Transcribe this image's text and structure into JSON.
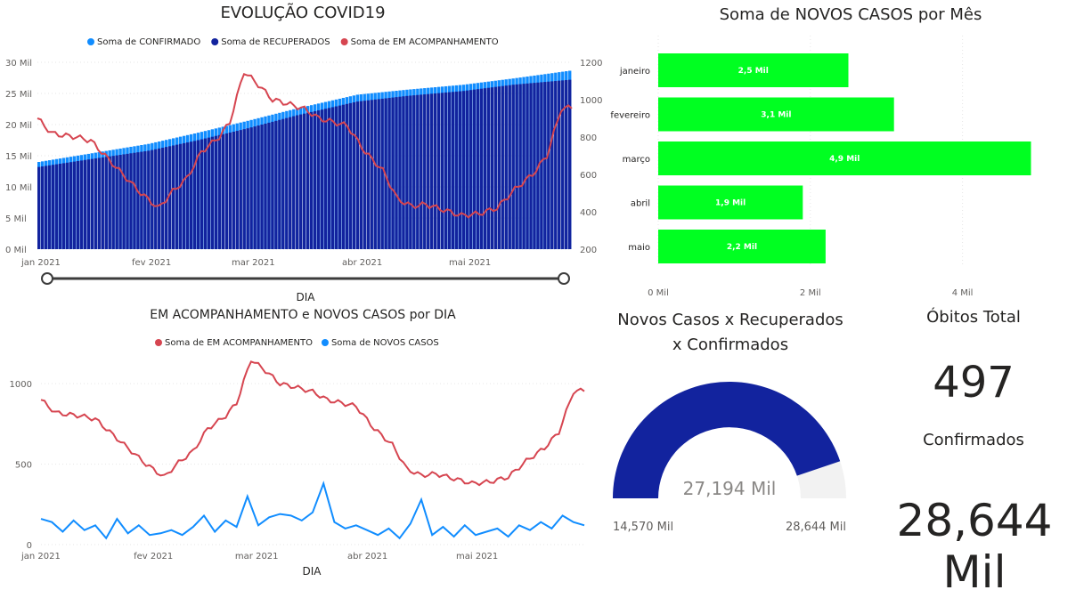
{
  "evolucao": {
    "title": "EVOLUÇÃO COVID19",
    "legend": [
      {
        "label": "Soma de CONFIRMADO",
        "color": "#118DFF"
      },
      {
        "label": "Soma de RECUPERADOS",
        "color": "#12239E"
      },
      {
        "label": "Soma de EM ACOMPANHAMENTO",
        "color": "#D64550"
      }
    ],
    "y_left_ticks": [
      "0 Mil",
      "5 Mil",
      "10 Mil",
      "15 Mil",
      "20 Mil",
      "25 Mil",
      "30 Mil"
    ],
    "y_right_ticks": [
      "200",
      "400",
      "600",
      "800",
      "1000",
      "1200"
    ],
    "x_ticks": [
      "jan 2021",
      "fev 2021",
      "mar 2021",
      "abr 2021",
      "mai 2021"
    ],
    "xlabel": "DIA"
  },
  "acompanhamento": {
    "title": "EM ACOMPANHAMENTO e NOVOS CASOS por DIA",
    "legend": [
      {
        "label": "Soma de EM ACOMPANHAMENTO",
        "color": "#D64550"
      },
      {
        "label": "Soma de NOVOS CASOS",
        "color": "#118DFF"
      }
    ],
    "y_ticks": [
      "0",
      "500",
      "1000"
    ],
    "x_ticks": [
      "jan 2021",
      "fev 2021",
      "mar 2021",
      "abr 2021",
      "mai 2021"
    ],
    "xlabel": "DIA"
  },
  "novos_casos_mes": {
    "title": "Soma de NOVOS CASOS por Mês",
    "x_ticks": [
      "0 Mil",
      "2 Mil",
      "4 Mil"
    ],
    "color": "#00FF21"
  },
  "gauge": {
    "title_line1": "Novos Casos x Recuperados",
    "title_line2": "x Confirmados",
    "value_label": "27,194 Mil",
    "min_label": "14,570 Mil",
    "max_label": "28,644 Mil",
    "value": 27.194,
    "min": 14.57,
    "max": 28.644,
    "fill_color": "#12239E",
    "track_color": "#F2F2F2"
  },
  "obitos": {
    "title": "Óbitos Total",
    "value": "497"
  },
  "confirmados": {
    "title": "Confirmados",
    "value": "28,644 Mil"
  },
  "chart_data": [
    {
      "type": "bar",
      "title": "Soma de NOVOS CASOS por Mês",
      "categories": [
        "janeiro",
        "fevereiro",
        "março",
        "abril",
        "maio"
      ],
      "values": [
        2.5,
        3.1,
        4.9,
        1.9,
        2.2
      ],
      "data_labels": [
        "2,5 Mil",
        "3,1 Mil",
        "4,9 Mil",
        "1,9 Mil",
        "2,2 Mil"
      ],
      "xlim": [
        0,
        5
      ],
      "orientation": "horizontal"
    },
    {
      "type": "line",
      "title": "EVOLUÇÃO COVID19",
      "xlabel": "DIA",
      "x_start": "2021-01-01",
      "x_end": "2021-05-31",
      "series": [
        {
          "name": "Soma de CONFIRMADO",
          "kind": "bar",
          "axis": "left",
          "color": "#118DFF",
          "dates": [
            "2021-01-01",
            "2021-01-15",
            "2021-02-01",
            "2021-02-15",
            "2021-03-01",
            "2021-03-15",
            "2021-04-01",
            "2021-04-15",
            "2021-05-01",
            "2021-05-15",
            "2021-05-31"
          ],
          "values": [
            14000,
            15300,
            16900,
            18700,
            20600,
            22600,
            24800,
            25600,
            26400,
            27400,
            28644
          ]
        },
        {
          "name": "Soma de RECUPERADOS",
          "kind": "bar",
          "axis": "left",
          "color": "#12239E",
          "dates": [
            "2021-01-01",
            "2021-01-15",
            "2021-02-01",
            "2021-02-15",
            "2021-03-01",
            "2021-03-15",
            "2021-04-01",
            "2021-04-15",
            "2021-05-01",
            "2021-05-15",
            "2021-05-31"
          ],
          "values": [
            13200,
            14400,
            15800,
            17500,
            19400,
            21500,
            23700,
            24600,
            25400,
            26400,
            27194
          ]
        },
        {
          "name": "Soma de EM ACOMPANHAMENTO",
          "kind": "line",
          "axis": "right",
          "color": "#D64550",
          "dates": [
            "2021-01-01",
            "2021-01-03",
            "2021-01-05",
            "2021-01-08",
            "2021-01-12",
            "2021-01-16",
            "2021-01-20",
            "2021-01-25",
            "2021-01-30",
            "2021-02-04",
            "2021-02-08",
            "2021-02-12",
            "2021-02-16",
            "2021-02-21",
            "2021-02-24",
            "2021-02-28",
            "2021-03-04",
            "2021-03-08",
            "2021-03-12",
            "2021-03-17",
            "2021-03-21",
            "2021-03-25",
            "2021-03-29",
            "2021-04-03",
            "2021-04-08",
            "2021-04-12",
            "2021-04-16",
            "2021-04-20",
            "2021-04-25",
            "2021-04-30",
            "2021-05-05",
            "2021-05-10",
            "2021-05-15",
            "2021-05-20",
            "2021-05-24",
            "2021-05-28",
            "2021-05-31"
          ],
          "values": [
            900,
            860,
            820,
            810,
            800,
            780,
            700,
            600,
            500,
            420,
            510,
            580,
            720,
            800,
            880,
            1150,
            1080,
            1000,
            980,
            950,
            900,
            880,
            860,
            720,
            620,
            470,
            430,
            440,
            410,
            380,
            390,
            420,
            520,
            600,
            700,
            950,
            960
          ]
        }
      ],
      "ylim_left": [
        0,
        30000
      ],
      "ylim_right": [
        200,
        1200
      ]
    },
    {
      "type": "line",
      "title": "EM ACOMPANHAMENTO e NOVOS CASOS por DIA",
      "xlabel": "DIA",
      "x_start": "2021-01-01",
      "x_end": "2021-05-31",
      "ylim": [
        0,
        1200
      ],
      "series": [
        {
          "name": "Soma de EM ACOMPANHAMENTO",
          "color": "#D64550",
          "dates": [
            "2021-01-01",
            "2021-01-03",
            "2021-01-05",
            "2021-01-08",
            "2021-01-12",
            "2021-01-16",
            "2021-01-20",
            "2021-01-25",
            "2021-01-30",
            "2021-02-04",
            "2021-02-08",
            "2021-02-12",
            "2021-02-16",
            "2021-02-21",
            "2021-02-24",
            "2021-02-28",
            "2021-03-04",
            "2021-03-08",
            "2021-03-12",
            "2021-03-17",
            "2021-03-21",
            "2021-03-25",
            "2021-03-29",
            "2021-04-03",
            "2021-04-08",
            "2021-04-12",
            "2021-04-16",
            "2021-04-20",
            "2021-04-25",
            "2021-04-30",
            "2021-05-05",
            "2021-05-10",
            "2021-05-15",
            "2021-05-20",
            "2021-05-24",
            "2021-05-28",
            "2021-05-31"
          ],
          "values": [
            900,
            860,
            820,
            810,
            800,
            780,
            700,
            600,
            500,
            420,
            510,
            580,
            720,
            800,
            880,
            1150,
            1080,
            1000,
            980,
            950,
            900,
            880,
            860,
            720,
            620,
            470,
            430,
            440,
            410,
            380,
            390,
            420,
            520,
            600,
            700,
            950,
            960
          ]
        },
        {
          "name": "Soma de NOVOS CASOS",
          "color": "#118DFF",
          "dates": [
            "2021-01-01",
            "2021-01-04",
            "2021-01-07",
            "2021-01-10",
            "2021-01-13",
            "2021-01-16",
            "2021-01-19",
            "2021-01-22",
            "2021-01-25",
            "2021-01-28",
            "2021-01-31",
            "2021-02-03",
            "2021-02-06",
            "2021-02-09",
            "2021-02-12",
            "2021-02-15",
            "2021-02-18",
            "2021-02-21",
            "2021-02-24",
            "2021-02-27",
            "2021-03-02",
            "2021-03-05",
            "2021-03-08",
            "2021-03-11",
            "2021-03-14",
            "2021-03-17",
            "2021-03-20",
            "2021-03-23",
            "2021-03-26",
            "2021-03-29",
            "2021-04-01",
            "2021-04-04",
            "2021-04-07",
            "2021-04-10",
            "2021-04-13",
            "2021-04-16",
            "2021-04-19",
            "2021-04-22",
            "2021-04-25",
            "2021-04-28",
            "2021-05-01",
            "2021-05-04",
            "2021-05-07",
            "2021-05-10",
            "2021-05-13",
            "2021-05-16",
            "2021-05-19",
            "2021-05-22",
            "2021-05-25",
            "2021-05-28",
            "2021-05-31"
          ],
          "values": [
            160,
            140,
            80,
            150,
            90,
            120,
            40,
            160,
            70,
            120,
            60,
            70,
            90,
            60,
            110,
            180,
            80,
            150,
            110,
            300,
            120,
            170,
            190,
            180,
            150,
            200,
            380,
            140,
            100,
            120,
            90,
            60,
            100,
            40,
            130,
            280,
            60,
            110,
            50,
            120,
            60,
            80,
            100,
            50,
            120,
            90,
            140,
            100,
            180,
            140,
            120
          ]
        }
      ]
    }
  ]
}
